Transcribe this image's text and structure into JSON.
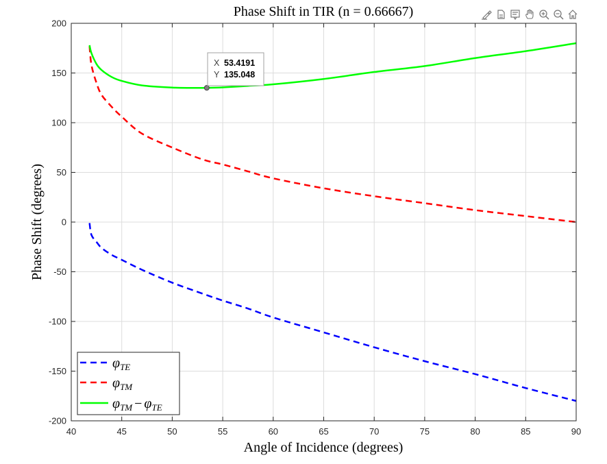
{
  "toolbar": {
    "icons": [
      "brush-icon",
      "export-icon",
      "datatip-icon",
      "pan-icon",
      "zoom-in-icon",
      "zoom-out-icon",
      "home-icon"
    ]
  },
  "colors": {
    "te": "#0000ff",
    "tm": "#ff0000",
    "diff": "#00ff00",
    "grid": "#dcdcdc",
    "axis": "#262626"
  },
  "chart_data": {
    "type": "line",
    "title": "Phase Shift in TIR (n = 0.66667)",
    "xlabel": "Angle of Incidence (degrees)",
    "ylabel": "Phase Shift (degrees)",
    "xlim": [
      40,
      90
    ],
    "ylim": [
      -200,
      200
    ],
    "xticks": [
      40,
      45,
      50,
      55,
      60,
      65,
      70,
      75,
      80,
      85,
      90
    ],
    "yticks": [
      -200,
      -150,
      -100,
      -50,
      0,
      50,
      100,
      150,
      200
    ],
    "grid": true,
    "legend_position": "bottom-left",
    "series": [
      {
        "key": "te",
        "name_base": "φ",
        "name_sub": "TE",
        "style": "dashed",
        "x": [
          41.81,
          42,
          42.5,
          43,
          44,
          45,
          47,
          50,
          53,
          55,
          57.5,
          60,
          65,
          70,
          75,
          80,
          85,
          90
        ],
        "y": [
          -1,
          -13,
          -20,
          -26,
          -33,
          -38,
          -48,
          -61,
          -72,
          -79,
          -87,
          -96,
          -111,
          -126,
          -140,
          -153,
          -167,
          -180
        ]
      },
      {
        "key": "tm",
        "name_base": "φ",
        "name_sub": "TM",
        "style": "dashed",
        "x": [
          41.81,
          42,
          42.5,
          43,
          44,
          45,
          47,
          50,
          53,
          55,
          57.5,
          60,
          65,
          70,
          75,
          80,
          85,
          90
        ],
        "y": [
          177,
          158,
          140,
          128,
          116,
          106,
          89,
          75,
          63,
          58,
          51,
          44,
          34,
          26,
          19,
          12,
          6,
          0
        ]
      },
      {
        "key": "diff",
        "name_base": "φ",
        "name_sub": "TM",
        "name_minus": "−",
        "name_base2": "φ",
        "name_sub2": "TE",
        "style": "solid",
        "x": [
          41.81,
          42,
          42.5,
          43,
          44,
          45,
          47,
          50,
          52,
          53.4191,
          55,
          57.5,
          60,
          65,
          70,
          75,
          80,
          85,
          90
        ],
        "y": [
          178,
          170,
          159,
          153,
          146,
          142,
          137.5,
          135.3,
          135,
          135.048,
          135.5,
          137,
          138.6,
          144,
          151,
          157,
          165,
          172,
          180
        ]
      }
    ],
    "datatip": {
      "x_label": "X",
      "x_value": "53.4191",
      "y_label": "Y",
      "y_value": "135.048",
      "x": 53.4191,
      "y": 135.048
    }
  }
}
